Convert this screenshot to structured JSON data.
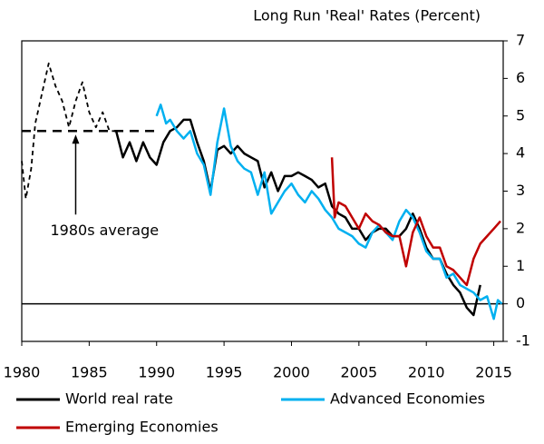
{
  "chart_data": {
    "type": "line",
    "title": "Long Run 'Real' Rates (Percent)",
    "xlim": [
      1980,
      2015.7
    ],
    "xticks": [
      1980,
      1985,
      1990,
      1995,
      2000,
      2005,
      2010,
      2015
    ],
    "ylim": [
      -1,
      7
    ],
    "yticks": [
      -1,
      0,
      1,
      2,
      3,
      4,
      5,
      6,
      7
    ],
    "y_axis_side": "right",
    "grid": false,
    "annotations": [
      {
        "text": "1980s average",
        "value": 4.6,
        "x": [
          1980,
          1990
        ]
      }
    ],
    "series": [
      {
        "name": "World real rate",
        "color": "#000000",
        "dashed_before": 1987,
        "x": [
          1980,
          1980.3,
          1980.7,
          1981,
          1981.5,
          1982,
          1982.5,
          1983,
          1983.5,
          1984,
          1984.5,
          1985,
          1985.5,
          1986,
          1986.5,
          1987,
          1987.5,
          1988,
          1988.5,
          1989,
          1989.5,
          1990,
          1990.5,
          1991,
          1991.5,
          1992,
          1992.5,
          1993,
          1993.5,
          1994,
          1994.5,
          1995,
          1995.5,
          1996,
          1996.5,
          1997,
          1997.5,
          1998,
          1998.5,
          1999,
          1999.5,
          2000,
          2000.5,
          2001,
          2001.5,
          2002,
          2002.5,
          2003,
          2003.5,
          2004,
          2004.5,
          2005,
          2005.5,
          2006,
          2006.5,
          2007,
          2007.5,
          2008,
          2008.5,
          2009,
          2009.5,
          2010,
          2010.5,
          2011,
          2011.5,
          2012,
          2012.5,
          2013,
          2013.5,
          2014
        ],
        "values": [
          3.8,
          2.8,
          3.6,
          4.8,
          5.6,
          6.4,
          5.8,
          5.4,
          4.7,
          5.4,
          5.9,
          5.1,
          4.7,
          5.1,
          4.6,
          4.6,
          3.9,
          4.3,
          3.8,
          4.3,
          3.9,
          3.7,
          4.3,
          4.6,
          4.7,
          4.9,
          4.9,
          4.3,
          3.8,
          3.0,
          4.1,
          4.2,
          4.0,
          4.2,
          4.0,
          3.9,
          3.8,
          3.1,
          3.5,
          3.0,
          3.4,
          3.4,
          3.5,
          3.4,
          3.3,
          3.1,
          3.2,
          2.6,
          2.4,
          2.3,
          2.0,
          2.0,
          1.7,
          1.9,
          2.0,
          2.0,
          1.8,
          1.8,
          2.0,
          2.4,
          2.0,
          1.5,
          1.2,
          1.2,
          0.8,
          0.5,
          0.3,
          -0.1,
          -0.3,
          0.5
        ]
      },
      {
        "name": "Advanced Economies",
        "color": "#00b0f0",
        "x": [
          1990,
          1990.3,
          1990.7,
          1991,
          1991.5,
          1992,
          1992.5,
          1993,
          1993.5,
          1994,
          1994.5,
          1995,
          1995.5,
          1996,
          1996.5,
          1997,
          1997.5,
          1998,
          1998.5,
          1999,
          1999.5,
          2000,
          2000.5,
          2001,
          2001.5,
          2002,
          2002.5,
          2003,
          2003.5,
          2004,
          2004.5,
          2005,
          2005.5,
          2006,
          2006.5,
          2007,
          2007.5,
          2008,
          2008.5,
          2009,
          2009.5,
          2010,
          2010.5,
          2011,
          2011.5,
          2012,
          2012.5,
          2013,
          2013.5,
          2014,
          2014.5,
          2015,
          2015.3,
          2015.6
        ],
        "values": [
          5.0,
          5.3,
          4.8,
          4.9,
          4.6,
          4.4,
          4.6,
          4.0,
          3.7,
          2.9,
          4.3,
          5.2,
          4.2,
          3.8,
          3.6,
          3.5,
          2.9,
          3.5,
          2.4,
          2.7,
          3.0,
          3.2,
          2.9,
          2.7,
          3.0,
          2.8,
          2.5,
          2.3,
          2.0,
          1.9,
          1.8,
          1.6,
          1.5,
          1.9,
          2.1,
          1.9,
          1.7,
          2.2,
          2.5,
          2.3,
          1.9,
          1.4,
          1.2,
          1.2,
          0.7,
          0.8,
          0.5,
          0.4,
          0.3,
          0.1,
          0.2,
          -0.4,
          0.1,
          0.0
        ]
      },
      {
        "name": "Emerging Economies",
        "color": "#c00000",
        "x": [
          2003,
          2003.2,
          2003.5,
          2004,
          2004.5,
          2005,
          2005.5,
          2006,
          2006.5,
          2007,
          2007.5,
          2008,
          2008.5,
          2009,
          2009.5,
          2010,
          2010.5,
          2011,
          2011.5,
          2012,
          2012.5,
          2013,
          2013.5,
          2014,
          2014.5,
          2015,
          2015.5
        ],
        "values": [
          3.9,
          2.3,
          2.7,
          2.6,
          2.3,
          2.0,
          2.4,
          2.2,
          2.1,
          1.9,
          1.8,
          1.8,
          1.0,
          1.9,
          2.3,
          1.8,
          1.5,
          1.5,
          1.0,
          0.9,
          0.7,
          0.5,
          1.2,
          1.6,
          1.8,
          2.0,
          2.2
        ]
      }
    ]
  }
}
